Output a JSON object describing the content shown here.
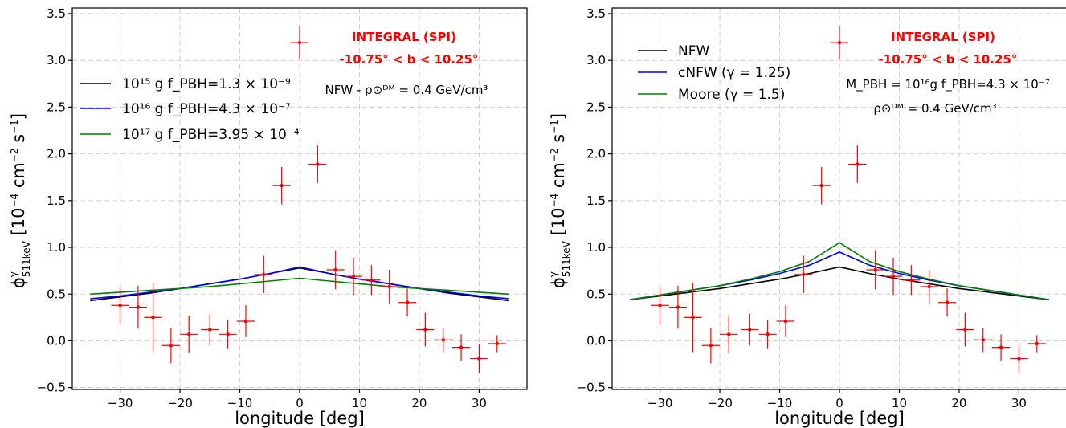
{
  "chart_data": [
    {
      "type": "line",
      "xlabel": "longitude [deg]",
      "ylabel": "φ^γ_511keV [10^-4 cm^-2 s^-1]",
      "xlim": [
        -38,
        38
      ],
      "ylim": [
        -0.52,
        3.56
      ],
      "xticks": [
        -30,
        -20,
        -10,
        0,
        10,
        20,
        30
      ],
      "xtick_labels": [
        "−30",
        "−20",
        "−10",
        "0",
        "10",
        "20",
        "30"
      ],
      "yticks": [
        -0.5,
        0.0,
        0.5,
        1.0,
        1.5,
        2.0,
        2.5,
        3.0,
        3.5
      ],
      "ytick_labels": [
        "−0.5",
        "0.0",
        "0.5",
        "1.0",
        "1.5",
        "2.0",
        "2.5",
        "3.0",
        "3.5"
      ],
      "grid": true,
      "legend_placement": "upper-left",
      "annotations": {
        "instrument": "INTEGRAL (SPI)",
        "latitude": "-10.75° < b < 10.25°",
        "info": [
          "NFW - ρ⊙ᴰᴹ = 0.4 GeV/cm³"
        ]
      },
      "series": [
        {
          "name": "10¹⁵ g f_PBH=1.3 × 10⁻⁹",
          "color": "#000000",
          "x": [
            -35,
            -30,
            -25,
            -20,
            -15,
            -10,
            -5,
            0,
            5,
            10,
            15,
            20,
            25,
            30,
            35
          ],
          "y": [
            0.43,
            0.47,
            0.51,
            0.56,
            0.61,
            0.66,
            0.72,
            0.78,
            0.72,
            0.66,
            0.61,
            0.56,
            0.51,
            0.47,
            0.43
          ]
        },
        {
          "name": "10¹⁶ g f_PBH=4.3 × 10⁻⁷",
          "color": "#0000ff",
          "x": [
            -35,
            -30,
            -25,
            -20,
            -15,
            -10,
            -5,
            0,
            5,
            10,
            15,
            20,
            25,
            30,
            35
          ],
          "y": [
            0.45,
            0.48,
            0.52,
            0.56,
            0.61,
            0.66,
            0.72,
            0.79,
            0.72,
            0.66,
            0.61,
            0.56,
            0.52,
            0.48,
            0.45
          ]
        },
        {
          "name": "10¹⁷ g f_PBH=3.95 × 10⁻⁴",
          "color": "#008000",
          "x": [
            -35,
            -30,
            -25,
            -20,
            -15,
            -10,
            -5,
            0,
            5,
            10,
            15,
            20,
            25,
            30,
            35
          ],
          "y": [
            0.5,
            0.52,
            0.54,
            0.56,
            0.58,
            0.61,
            0.64,
            0.67,
            0.64,
            0.61,
            0.58,
            0.56,
            0.54,
            0.52,
            0.5
          ]
        }
      ],
      "data_points": [
        {
          "x": -30.0,
          "y": 0.38,
          "yerr": 0.21,
          "xerr": 1.5
        },
        {
          "x": -27.0,
          "y": 0.36,
          "yerr": 0.23,
          "xerr": 1.5
        },
        {
          "x": -24.5,
          "y": 0.25,
          "yerr": 0.37,
          "xerr": 1.5
        },
        {
          "x": -21.5,
          "y": -0.05,
          "yerr": 0.19,
          "xerr": 1.5
        },
        {
          "x": -18.5,
          "y": 0.07,
          "yerr": 0.2,
          "xerr": 1.5
        },
        {
          "x": -15.0,
          "y": 0.12,
          "yerr": 0.17,
          "xerr": 1.5
        },
        {
          "x": -12.0,
          "y": 0.07,
          "yerr": 0.15,
          "xerr": 1.5
        },
        {
          "x": -9.0,
          "y": 0.21,
          "yerr": 0.17,
          "xerr": 1.5
        },
        {
          "x": -6.0,
          "y": 0.71,
          "yerr": 0.2,
          "xerr": 1.5
        },
        {
          "x": -3.0,
          "y": 1.66,
          "yerr": 0.2,
          "xerr": 1.5
        },
        {
          "x": 0.0,
          "y": 3.19,
          "yerr": 0.18,
          "xerr": 1.5
        },
        {
          "x": 3.0,
          "y": 1.89,
          "yerr": 0.2,
          "xerr": 1.5
        },
        {
          "x": 6.0,
          "y": 0.76,
          "yerr": 0.21,
          "xerr": 1.5
        },
        {
          "x": 9.0,
          "y": 0.69,
          "yerr": 0.2,
          "xerr": 1.5
        },
        {
          "x": 12.0,
          "y": 0.65,
          "yerr": 0.16,
          "xerr": 1.5
        },
        {
          "x": 15.0,
          "y": 0.58,
          "yerr": 0.18,
          "xerr": 1.5
        },
        {
          "x": 18.0,
          "y": 0.41,
          "yerr": 0.15,
          "xerr": 1.5
        },
        {
          "x": 21.0,
          "y": 0.12,
          "yerr": 0.18,
          "xerr": 1.5
        },
        {
          "x": 24.0,
          "y": 0.01,
          "yerr": 0.13,
          "xerr": 1.5
        },
        {
          "x": 27.0,
          "y": -0.07,
          "yerr": 0.14,
          "xerr": 1.5
        },
        {
          "x": 30.0,
          "y": -0.19,
          "yerr": 0.15,
          "xerr": 1.5
        },
        {
          "x": 33.0,
          "y": -0.03,
          "yerr": 0.09,
          "xerr": 1.5
        }
      ]
    },
    {
      "type": "line",
      "xlabel": "longitude [deg]",
      "ylabel": "φ^γ_511keV [10^-4 cm^-2 s^-1]",
      "xlim": [
        -38,
        38
      ],
      "ylim": [
        -0.52,
        3.56
      ],
      "xticks": [
        -30,
        -20,
        -10,
        0,
        10,
        20,
        30
      ],
      "xtick_labels": [
        "−30",
        "−20",
        "−10",
        "0",
        "10",
        "20",
        "30"
      ],
      "yticks": [
        -0.5,
        0.0,
        0.5,
        1.0,
        1.5,
        2.0,
        2.5,
        3.0,
        3.5
      ],
      "ytick_labels": [
        "−0.5",
        "0.0",
        "0.5",
        "1.0",
        "1.5",
        "2.0",
        "2.5",
        "3.0",
        "3.5"
      ],
      "grid": true,
      "legend_placement": "upper-left",
      "annotations": {
        "instrument": "INTEGRAL (SPI)",
        "latitude": "-10.75° < b < 10.25°",
        "info": [
          "M_PBH = 10¹⁶g  f_PBH=4.3 × 10⁻⁷",
          "ρ⊙ᴰᴹ = 0.4 GeV/cm³"
        ]
      },
      "series": [
        {
          "name": "NFW",
          "color": "#000000",
          "x": [
            -35,
            -30,
            -25,
            -20,
            -15,
            -10,
            -5,
            0,
            5,
            10,
            15,
            20,
            25,
            30,
            35
          ],
          "y": [
            0.44,
            0.48,
            0.52,
            0.56,
            0.61,
            0.66,
            0.72,
            0.79,
            0.72,
            0.66,
            0.61,
            0.56,
            0.52,
            0.48,
            0.44
          ]
        },
        {
          "name": "cNFW (γ = 1.25)",
          "color": "#0000ff",
          "x": [
            -35,
            -30,
            -25,
            -20,
            -15,
            -10,
            -5,
            0,
            5,
            10,
            15,
            20,
            25,
            30,
            35
          ],
          "y": [
            0.44,
            0.49,
            0.54,
            0.59,
            0.65,
            0.72,
            0.81,
            0.95,
            0.81,
            0.72,
            0.65,
            0.59,
            0.54,
            0.49,
            0.44
          ]
        },
        {
          "name": "Moore (γ = 1.5)",
          "color": "#008000",
          "x": [
            -35,
            -30,
            -25,
            -20,
            -15,
            -10,
            -5,
            0,
            5,
            10,
            15,
            20,
            25,
            30,
            35
          ],
          "y": [
            0.44,
            0.49,
            0.54,
            0.59,
            0.66,
            0.74,
            0.85,
            1.05,
            0.85,
            0.74,
            0.66,
            0.59,
            0.54,
            0.49,
            0.44
          ]
        }
      ],
      "data_points": [
        {
          "x": -30.0,
          "y": 0.38,
          "yerr": 0.21,
          "xerr": 1.5
        },
        {
          "x": -27.0,
          "y": 0.36,
          "yerr": 0.23,
          "xerr": 1.5
        },
        {
          "x": -24.5,
          "y": 0.25,
          "yerr": 0.37,
          "xerr": 1.5
        },
        {
          "x": -21.5,
          "y": -0.05,
          "yerr": 0.19,
          "xerr": 1.5
        },
        {
          "x": -18.5,
          "y": 0.07,
          "yerr": 0.2,
          "xerr": 1.5
        },
        {
          "x": -15.0,
          "y": 0.12,
          "yerr": 0.17,
          "xerr": 1.5
        },
        {
          "x": -12.0,
          "y": 0.07,
          "yerr": 0.15,
          "xerr": 1.5
        },
        {
          "x": -9.0,
          "y": 0.21,
          "yerr": 0.17,
          "xerr": 1.5
        },
        {
          "x": -6.0,
          "y": 0.71,
          "yerr": 0.2,
          "xerr": 1.5
        },
        {
          "x": -3.0,
          "y": 1.66,
          "yerr": 0.2,
          "xerr": 1.5
        },
        {
          "x": 0.0,
          "y": 3.19,
          "yerr": 0.18,
          "xerr": 1.5
        },
        {
          "x": 3.0,
          "y": 1.89,
          "yerr": 0.2,
          "xerr": 1.5
        },
        {
          "x": 6.0,
          "y": 0.76,
          "yerr": 0.21,
          "xerr": 1.5
        },
        {
          "x": 9.0,
          "y": 0.69,
          "yerr": 0.2,
          "xerr": 1.5
        },
        {
          "x": 12.0,
          "y": 0.65,
          "yerr": 0.16,
          "xerr": 1.5
        },
        {
          "x": 15.0,
          "y": 0.58,
          "yerr": 0.18,
          "xerr": 1.5
        },
        {
          "x": 18.0,
          "y": 0.41,
          "yerr": 0.15,
          "xerr": 1.5
        },
        {
          "x": 21.0,
          "y": 0.12,
          "yerr": 0.18,
          "xerr": 1.5
        },
        {
          "x": 24.0,
          "y": 0.01,
          "yerr": 0.13,
          "xerr": 1.5
        },
        {
          "x": 27.0,
          "y": -0.07,
          "yerr": 0.14,
          "xerr": 1.5
        },
        {
          "x": 30.0,
          "y": -0.19,
          "yerr": 0.15,
          "xerr": 1.5
        },
        {
          "x": 33.0,
          "y": -0.03,
          "yerr": 0.09,
          "xerr": 1.5
        }
      ]
    }
  ]
}
